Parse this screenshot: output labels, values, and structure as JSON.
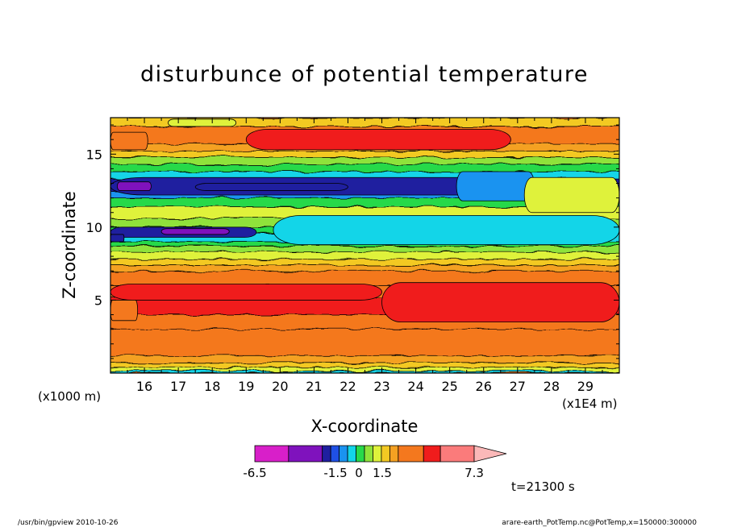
{
  "chart_data": {
    "type": "heatmap",
    "title": "disturbunce of potential temperature",
    "xlabel": "X-coordinate",
    "ylabel": "Z-coordinate",
    "x_unit": "(x1E4 m)",
    "y_unit": "(x1000 m)",
    "xlim": [
      15,
      30
    ],
    "ylim": [
      0,
      17.5
    ],
    "x_ticks": [
      16,
      17,
      18,
      19,
      20,
      21,
      22,
      23,
      24,
      25,
      26,
      27,
      28,
      29
    ],
    "y_ticks": [
      5,
      10,
      15
    ],
    "colorbar": {
      "tick_labels": [
        "-6.5",
        "-1.5",
        "0",
        "1.5",
        "7.3"
      ],
      "tick_values": [
        -6.5,
        -1.5,
        0,
        1.5,
        7.3
      ],
      "segments": [
        {
          "from": -6.5,
          "to": -4.5,
          "color": "#d81fc9"
        },
        {
          "from": -4.5,
          "to": -2.5,
          "color": "#7f12bd"
        },
        {
          "from": -2.5,
          "to": -2.0,
          "color": "#1f1f9f"
        },
        {
          "from": -2.0,
          "to": -1.5,
          "color": "#1f50e5"
        },
        {
          "from": -1.5,
          "to": -1.0,
          "color": "#1a93f0"
        },
        {
          "from": -1.0,
          "to": -0.5,
          "color": "#13d5e8"
        },
        {
          "from": -0.5,
          "to": 0.0,
          "color": "#27d94a"
        },
        {
          "from": 0.0,
          "to": 0.5,
          "color": "#8fe23a"
        },
        {
          "from": 0.5,
          "to": 1.0,
          "color": "#dff23b"
        },
        {
          "from": 1.0,
          "to": 1.5,
          "color": "#f3c923"
        },
        {
          "from": 1.5,
          "to": 2.0,
          "color": "#f4a122"
        },
        {
          "from": 2.0,
          "to": 3.5,
          "color": "#f4781e"
        },
        {
          "from": 3.5,
          "to": 4.5,
          "color": "#f01c1c"
        },
        {
          "from": 4.5,
          "to": 6.5,
          "color": "#fb7b7b"
        },
        {
          "from": 6.5,
          "to": 7.3,
          "color": "#fbb8b8"
        }
      ]
    },
    "layers": [
      {
        "z_from": 0.0,
        "z_to": 0.15,
        "value": -0.8
      },
      {
        "z_from": 0.15,
        "z_to": 0.4,
        "value": 0.8
      },
      {
        "z_from": 0.4,
        "z_to": 0.7,
        "value": 1.2
      },
      {
        "z_from": 0.7,
        "z_to": 1.2,
        "value": 1.7
      },
      {
        "z_from": 1.2,
        "z_to": 3.0,
        "value": 2.8
      },
      {
        "z_from": 3.0,
        "z_to": 4.0,
        "value": 2.9
      },
      {
        "z_from": 4.0,
        "z_to": 5.2,
        "value": 3.8
      },
      {
        "z_from": 5.2,
        "z_to": 6.0,
        "value": 3.0
      },
      {
        "z_from": 6.0,
        "z_to": 7.0,
        "value": 2.6
      },
      {
        "z_from": 7.0,
        "z_to": 7.4,
        "value": 1.8
      },
      {
        "z_from": 7.4,
        "z_to": 7.8,
        "value": 1.3
      },
      {
        "z_from": 7.8,
        "z_to": 8.3,
        "value": 0.7
      },
      {
        "z_from": 8.3,
        "z_to": 8.7,
        "value": 0.2
      },
      {
        "z_from": 8.7,
        "z_to": 9.0,
        "value": -0.3
      },
      {
        "z_from": 9.0,
        "z_to": 9.6,
        "value": -0.8
      },
      {
        "z_from": 9.6,
        "z_to": 10.0,
        "value": -0.4
      },
      {
        "z_from": 10.0,
        "z_to": 10.6,
        "value": 0.2
      },
      {
        "z_from": 10.6,
        "z_to": 11.4,
        "value": 0.7
      },
      {
        "z_from": 11.4,
        "z_to": 12.0,
        "value": -0.3
      },
      {
        "z_from": 12.0,
        "z_to": 12.5,
        "value": -1.2
      },
      {
        "z_from": 12.5,
        "z_to": 13.3,
        "value": -2.2
      },
      {
        "z_from": 13.3,
        "z_to": 13.8,
        "value": -0.7
      },
      {
        "z_from": 13.8,
        "z_to": 14.3,
        "value": -0.2
      },
      {
        "z_from": 14.3,
        "z_to": 14.8,
        "value": 0.3
      },
      {
        "z_from": 14.8,
        "z_to": 15.2,
        "value": 1.2
      },
      {
        "z_from": 15.2,
        "z_to": 15.7,
        "value": 1.7
      },
      {
        "z_from": 15.7,
        "z_to": 16.9,
        "value": 2.6
      },
      {
        "z_from": 16.9,
        "z_to": 17.5,
        "value": 1.2
      }
    ],
    "features": [
      {
        "x_from": 19.0,
        "x_to": 26.8,
        "z_from": 15.3,
        "z_to": 16.7,
        "value": 3.9
      },
      {
        "x_from": 15.0,
        "x_to": 16.1,
        "z_from": 15.3,
        "z_to": 16.5,
        "value": 2.6
      },
      {
        "x_from": 16.7,
        "x_to": 18.7,
        "z_from": 16.9,
        "z_to": 17.4,
        "value": 0.7
      },
      {
        "x_from": 15.0,
        "x_to": 27.2,
        "z_from": 12.2,
        "z_to": 13.4,
        "value": -2.2
      },
      {
        "x_from": 15.2,
        "x_to": 16.2,
        "z_from": 12.5,
        "z_to": 13.1,
        "value": -3.5
      },
      {
        "x_from": 17.5,
        "x_to": 22.0,
        "z_from": 12.5,
        "z_to": 13.0,
        "value": -2.3
      },
      {
        "x_from": 25.2,
        "x_to": 27.5,
        "z_from": 11.8,
        "z_to": 13.8,
        "value": -1.2
      },
      {
        "x_from": 27.2,
        "x_to": 30.0,
        "z_from": 11.0,
        "z_to": 13.4,
        "value": 0.7
      },
      {
        "x_from": 15.0,
        "x_to": 19.3,
        "z_from": 9.3,
        "z_to": 10.0,
        "value": -2.2
      },
      {
        "x_from": 16.5,
        "x_to": 18.5,
        "z_from": 9.5,
        "z_to": 9.9,
        "value": -3.0
      },
      {
        "x_from": 15.0,
        "x_to": 15.4,
        "z_from": 9.0,
        "z_to": 9.5,
        "value": -2.3
      },
      {
        "x_from": 21.3,
        "x_to": 27.2,
        "z_from": 9.1,
        "z_to": 10.3,
        "value": -1.6
      },
      {
        "x_from": 22.8,
        "x_to": 26.0,
        "z_from": 9.4,
        "z_to": 10.1,
        "value": -2.2
      },
      {
        "x_from": 24.2,
        "x_to": 25.0,
        "z_from": 9.6,
        "z_to": 9.95,
        "value": -4.5
      },
      {
        "x_from": 19.8,
        "x_to": 30.0,
        "z_from": 8.8,
        "z_to": 10.8,
        "value": -0.8
      },
      {
        "x_from": 23.0,
        "x_to": 30.0,
        "z_from": 3.5,
        "z_to": 6.2,
        "value": 3.9
      },
      {
        "x_from": 15.0,
        "x_to": 23.0,
        "z_from": 5.0,
        "z_to": 6.1,
        "value": 3.8
      },
      {
        "x_from": 15.0,
        "x_to": 15.8,
        "z_from": 3.6,
        "z_to": 5.0,
        "value": 3.0
      }
    ],
    "time_label": "t=21300 s"
  },
  "footer": {
    "left": "/usr/bin/gpview   2010-10-26",
    "right": "arare-earth_PotTemp.nc@PotTemp,x=150000:300000"
  }
}
